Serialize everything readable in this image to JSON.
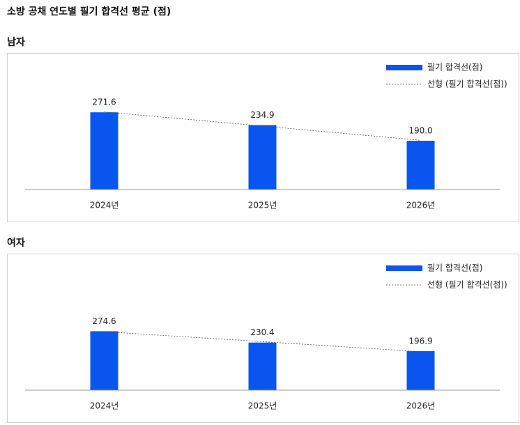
{
  "title": "소방 공채 연도별 필기 합격선 평균 (점)",
  "chart_data": [
    {
      "type": "bar",
      "title": "남자",
      "categories": [
        "2024년",
        "2025년",
        "2026년"
      ],
      "series": [
        {
          "name": "필기 합격선(점)",
          "color": "#0a55f0",
          "values": [
            271.6,
            234.9,
            190.0
          ],
          "value_labels": [
            "271.6",
            "234.9",
            "190.0"
          ]
        },
        {
          "name": "선형 (필기 합격선(점))",
          "type": "trendline",
          "color": "#555555",
          "values": [
            272.97,
            232.17,
            191.37
          ]
        }
      ],
      "ylim": [
        50,
        400
      ],
      "legend": "upper right"
    },
    {
      "type": "bar",
      "title": "여자",
      "categories": [
        "2024년",
        "2025년",
        "2026년"
      ],
      "series": [
        {
          "name": "필기 합격선(점)",
          "color": "#0a55f0",
          "values": [
            274.6,
            230.4,
            196.9
          ],
          "value_labels": [
            "274.6",
            "230.4",
            "196.9"
          ]
        },
        {
          "name": "선형 (필기 합격선(점))",
          "type": "trendline",
          "color": "#555555",
          "values": [
            272.82,
            233.97,
            195.12
          ]
        }
      ],
      "ylim": [
        45,
        520
      ],
      "legend": "upper right"
    }
  ]
}
